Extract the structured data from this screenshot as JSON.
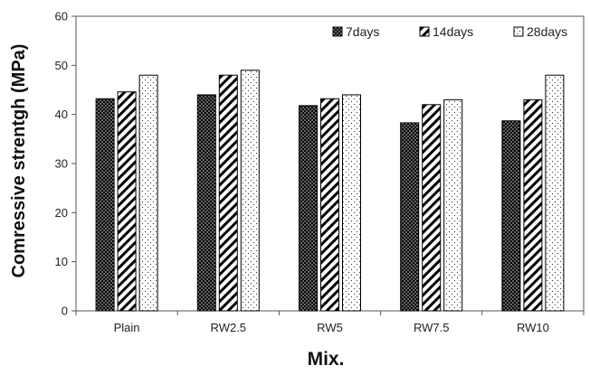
{
  "chart_data": {
    "type": "bar",
    "xlabel": "Mix.",
    "ylabel": "Comressive strentgh (MPa)",
    "categories": [
      "Plain",
      "RW2.5",
      "RW5",
      "RW7.5",
      "RW10"
    ],
    "ylim": [
      0,
      60
    ],
    "yticks": [
      "0",
      "10",
      "20",
      "30",
      "40",
      "50",
      "60"
    ],
    "grid": false,
    "legend_position": "top-right",
    "series": [
      {
        "name": "7days",
        "pattern": "dots-dense",
        "values": [
          43.2,
          44.0,
          41.8,
          38.3,
          38.7
        ]
      },
      {
        "name": "14days",
        "pattern": "diagonal-hatch",
        "values": [
          44.6,
          48.0,
          43.2,
          42.0,
          43.0
        ]
      },
      {
        "name": "28days",
        "pattern": "dots-sparse",
        "values": [
          48.0,
          49.0,
          44.0,
          43.0,
          48.0
        ]
      }
    ]
  }
}
